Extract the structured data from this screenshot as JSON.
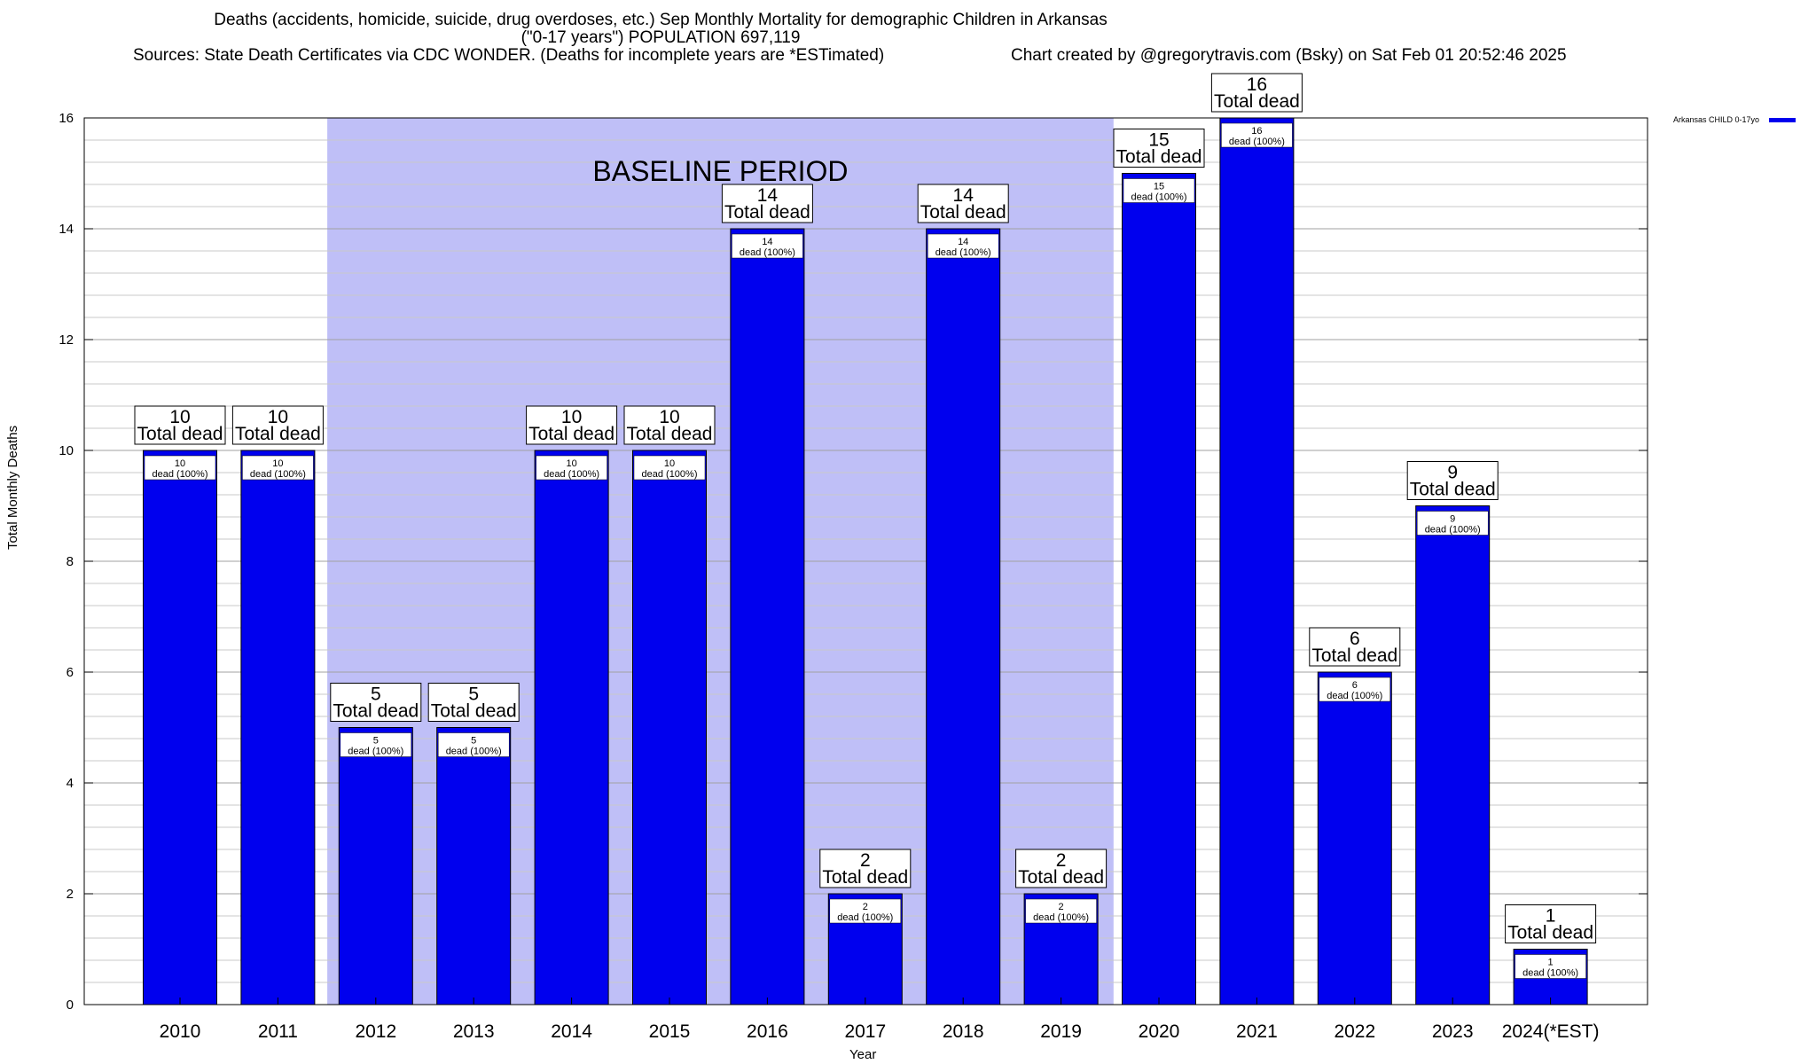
{
  "chart_data": {
    "type": "bar",
    "title_lines": [
      "Deaths (accidents, homicide, suicide, drug overdoses, etc.) Sep Monthly Mortality for demographic Children in Arkansas",
      "(\"0-17 years\") POPULATION 697,119"
    ],
    "sources": "Sources: State Death Certificates via CDC WONDER. (Deaths for incomplete years are *ESTimated)",
    "credit": "Chart created by @gregorytravis.com (Bsky) on Sat Feb 01 20:52:46 2025",
    "xlabel": "Year",
    "ylabel": "Total Monthly Deaths",
    "ylim": [
      0,
      16
    ],
    "yticks": [
      0,
      2,
      4,
      6,
      8,
      10,
      12,
      14,
      16
    ],
    "categories": [
      "2010",
      "2011",
      "2012",
      "2013",
      "2014",
      "2015",
      "2016",
      "2017",
      "2018",
      "2019",
      "2020",
      "2021",
      "2022",
      "2023",
      "2024(*EST)"
    ],
    "series": [
      {
        "name": "Arkansas CHILD 0-17yo",
        "color": "#0000ee",
        "values": [
          10,
          10,
          5,
          5,
          10,
          10,
          14,
          2,
          14,
          2,
          15,
          16,
          6,
          9,
          1
        ]
      }
    ],
    "total_label_text": "Total dead",
    "inner_label_text": "dead (100%)",
    "baseline": {
      "label": "BASELINE PERIOD",
      "from": "2012",
      "to": "2019",
      "color": "#bfbff7"
    },
    "grid": true
  }
}
